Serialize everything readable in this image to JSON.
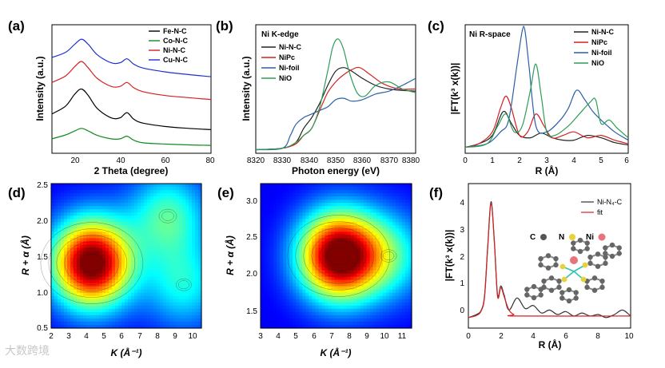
{
  "panels": [
    {
      "id": "a",
      "label": "(a)",
      "xlabel": "2 Theta (degree)",
      "ylabel": "Intensity (a.u.)",
      "xticks": [
        "20",
        "40",
        "60",
        "80"
      ],
      "legend": [
        {
          "name": "Fe-N-C",
          "color": "#000000"
        },
        {
          "name": "Co-N-C",
          "color": "#138a1f"
        },
        {
          "name": "Ni-N-C",
          "color": "#d42020"
        },
        {
          "name": "Cu-N-C",
          "color": "#1f2fd0"
        }
      ]
    },
    {
      "id": "b",
      "label": "(b)",
      "title": "Ni K-edge",
      "xlabel": "Photon energy (eV)",
      "ylabel": "Intensity (a.u.)",
      "xticks": [
        "8320",
        "8330",
        "8340",
        "8350",
        "8360",
        "8370",
        "8380"
      ],
      "legend": [
        {
          "name": "Ni-N-C",
          "color": "#222222"
        },
        {
          "name": "NiPc",
          "color": "#d42020"
        },
        {
          "name": "Ni-foil",
          "color": "#2a5fa8"
        },
        {
          "name": "NiO",
          "color": "#2e9c58"
        }
      ]
    },
    {
      "id": "c",
      "label": "(c)",
      "title": "Ni  R-space",
      "xlabel": "R (Å)",
      "ylabel": "|FT(k³ x(k))|",
      "xticks": [
        "0",
        "1",
        "2",
        "3",
        "4",
        "5",
        "6"
      ],
      "legend": [
        {
          "name": "Ni-N-C",
          "color": "#222222"
        },
        {
          "name": "NiPc",
          "color": "#d42020"
        },
        {
          "name": "Ni-foil",
          "color": "#2a5fa8"
        },
        {
          "name": "NiO",
          "color": "#2e9c58"
        }
      ]
    },
    {
      "id": "d",
      "label": "(d)",
      "xlabel": "K (Å⁻¹)",
      "ylabel": "R + α (Å)",
      "xticks": [
        "2",
        "3",
        "4",
        "5",
        "6",
        "7",
        "8",
        "9",
        "10"
      ],
      "yticks": [
        "0.5",
        "1.0",
        "1.5",
        "2.0",
        "2.5"
      ]
    },
    {
      "id": "e",
      "label": "(e)",
      "xlabel": "K (Å⁻¹)",
      "ylabel": "R + α (Å)",
      "xticks": [
        "3",
        "4",
        "5",
        "6",
        "7",
        "8",
        "9",
        "10",
        "11"
      ],
      "yticks": [
        "1.5",
        "2.0",
        "2.5",
        "3.0"
      ]
    },
    {
      "id": "f",
      "label": "(f)",
      "xlabel": "R (Å)",
      "ylabel": "|FT(k³ x(k))|",
      "xticks": [
        "0",
        "2",
        "4",
        "6",
        "8",
        "10"
      ],
      "yticks": [
        "0",
        "1",
        "2",
        "3",
        "4"
      ],
      "legend": [
        {
          "name": "Ni-N₄-C",
          "color": "#333333"
        },
        {
          "name": "fit",
          "color": "#d42020"
        }
      ],
      "inset_labels": {
        "c": "C",
        "n": "N",
        "ni": "Ni"
      }
    }
  ],
  "watermark": "大数跨境",
  "chart_data": [
    {
      "type": "line",
      "panel": "a",
      "xlabel": "2 Theta (degree)",
      "ylabel": "Intensity (a.u.)",
      "xlim": [
        10,
        80
      ],
      "series": [
        {
          "name": "Cu-N-C",
          "x": [
            10,
            16,
            20,
            23,
            26,
            30,
            36,
            40,
            43,
            46,
            50,
            60,
            70,
            80
          ],
          "y": [
            3.35,
            3.55,
            3.85,
            4.05,
            3.85,
            3.45,
            3.15,
            3.15,
            3.3,
            3.1,
            2.95,
            2.8,
            2.7,
            2.62
          ]
        },
        {
          "name": "Ni-N-C",
          "x": [
            10,
            16,
            20,
            23,
            26,
            30,
            36,
            40,
            43,
            46,
            50,
            60,
            70,
            80
          ],
          "y": [
            2.4,
            2.65,
            3.0,
            3.2,
            2.95,
            2.55,
            2.25,
            2.25,
            2.4,
            2.2,
            2.05,
            1.9,
            1.82,
            1.75
          ]
        },
        {
          "name": "Fe-N-C",
          "x": [
            10,
            16,
            20,
            23,
            26,
            30,
            36,
            40,
            43,
            46,
            50,
            60,
            70,
            80
          ],
          "y": [
            1.2,
            1.5,
            1.95,
            2.15,
            1.9,
            1.4,
            1.05,
            1.05,
            1.25,
            1.0,
            0.85,
            0.72,
            0.65,
            0.6
          ]
        },
        {
          "name": "Co-N-C",
          "x": [
            10,
            16,
            20,
            23,
            26,
            30,
            36,
            40,
            43,
            46,
            50,
            60,
            70,
            80
          ],
          "y": [
            0.25,
            0.4,
            0.55,
            0.65,
            0.55,
            0.38,
            0.25,
            0.25,
            0.35,
            0.2,
            0.1,
            0.05,
            0.02,
            0.0
          ]
        }
      ]
    },
    {
      "type": "line",
      "panel": "b",
      "xlabel": "Photon energy (eV)",
      "ylabel": "Intensity (a.u.)",
      "xlim": [
        8320,
        8380
      ],
      "series": [
        {
          "name": "Ni-N-C",
          "x": [
            8320,
            8330,
            8335,
            8338,
            8341,
            8344,
            8347,
            8350,
            8353,
            8356,
            8360,
            8365,
            8370,
            8375,
            8380
          ],
          "y": [
            0.0,
            0.02,
            0.1,
            0.3,
            0.45,
            0.65,
            0.9,
            1.1,
            1.15,
            1.1,
            1.0,
            0.9,
            0.85,
            0.83,
            0.82
          ]
        },
        {
          "name": "NiPc",
          "x": [
            8320,
            8330,
            8335,
            8338,
            8341,
            8344,
            8347,
            8350,
            8353,
            8356,
            8359,
            8363,
            8368,
            8374,
            8380
          ],
          "y": [
            0.0,
            0.02,
            0.08,
            0.2,
            0.3,
            0.55,
            0.8,
            0.95,
            1.05,
            1.12,
            1.15,
            1.05,
            0.92,
            0.85,
            0.85
          ]
        },
        {
          "name": "Ni-foil",
          "x": [
            8320,
            8330,
            8333,
            8335,
            8338,
            8341,
            8344,
            8347,
            8350,
            8353,
            8356,
            8360,
            8365,
            8370,
            8375,
            8380
          ],
          "y": [
            0.0,
            0.02,
            0.2,
            0.35,
            0.45,
            0.5,
            0.55,
            0.6,
            0.7,
            0.72,
            0.68,
            0.7,
            0.78,
            0.82,
            0.9,
            1.0
          ]
        },
        {
          "name": "NiO",
          "x": [
            8320,
            8330,
            8335,
            8338,
            8341,
            8344,
            8347,
            8349,
            8351,
            8353,
            8355,
            8358,
            8361,
            8365,
            8370,
            8375,
            8380
          ],
          "y": [
            0.0,
            0.02,
            0.1,
            0.2,
            0.3,
            0.6,
            1.1,
            1.45,
            1.55,
            1.4,
            1.1,
            0.8,
            0.75,
            0.9,
            0.95,
            0.85,
            0.8
          ]
        }
      ]
    },
    {
      "type": "line",
      "panel": "c",
      "xlabel": "R (Å)",
      "ylabel": "|FT(k³ x(k))|",
      "xlim": [
        0,
        6
      ],
      "series": [
        {
          "name": "Ni-N-C",
          "x": [
            0,
            0.5,
            1.0,
            1.4,
            1.7,
            2.0,
            2.4,
            2.8,
            3.2,
            3.6,
            4.0,
            4.5,
            5.0,
            5.5,
            6.0
          ],
          "y": [
            0.02,
            0.05,
            0.12,
            0.32,
            0.22,
            0.12,
            0.1,
            0.14,
            0.1,
            0.08,
            0.08,
            0.12,
            0.1,
            0.06,
            0.04
          ]
        },
        {
          "name": "NiPc",
          "x": [
            0,
            0.5,
            1.0,
            1.3,
            1.5,
            1.7,
            2.0,
            2.3,
            2.6,
            2.9,
            3.2,
            3.6,
            4.0,
            4.5,
            5.0,
            5.5,
            6.0
          ],
          "y": [
            0.02,
            0.05,
            0.15,
            0.35,
            0.45,
            0.35,
            0.12,
            0.15,
            0.3,
            0.2,
            0.1,
            0.12,
            0.15,
            0.1,
            0.12,
            0.08,
            0.05
          ]
        },
        {
          "name": "Ni-foil",
          "x": [
            0,
            0.8,
            1.3,
            1.6,
            1.9,
            2.1,
            2.2,
            2.35,
            2.6,
            3.0,
            3.5,
            3.8,
            4.1,
            4.4,
            4.7,
            5.0,
            5.5,
            6.0
          ],
          "y": [
            0.02,
            0.05,
            0.15,
            0.25,
            0.7,
            1.0,
            1.0,
            0.7,
            0.2,
            0.15,
            0.25,
            0.35,
            0.5,
            0.42,
            0.32,
            0.25,
            0.15,
            0.08
          ]
        },
        {
          "name": "NiO",
          "x": [
            0,
            0.8,
            1.2,
            1.5,
            1.8,
            2.1,
            2.4,
            2.6,
            2.8,
            3.0,
            3.3,
            3.8,
            4.2,
            4.6,
            4.8,
            5.0,
            5.3,
            5.6,
            6.0
          ],
          "y": [
            0.02,
            0.05,
            0.2,
            0.3,
            0.15,
            0.2,
            0.5,
            0.72,
            0.45,
            0.15,
            0.12,
            0.2,
            0.3,
            0.4,
            0.42,
            0.22,
            0.25,
            0.18,
            0.1
          ]
        }
      ]
    },
    {
      "type": "heatmap",
      "panel": "d",
      "xlabel": "K (Å⁻¹)",
      "ylabel": "R + α (Å)",
      "xlim": [
        2,
        10.5
      ],
      "ylim": [
        0.5,
        2.5
      ],
      "peaks": [
        {
          "x": 4.3,
          "y": 1.4,
          "amp": 1.0
        },
        {
          "x": 8.6,
          "y": 2.05,
          "amp": 0.35
        },
        {
          "x": 9.5,
          "y": 1.1,
          "amp": 0.28
        }
      ]
    },
    {
      "type": "heatmap",
      "panel": "e",
      "xlabel": "K (Å⁻¹)",
      "ylabel": "R + α (Å)",
      "xlim": [
        3,
        11.5
      ],
      "ylim": [
        1.3,
        3.2
      ],
      "peaks": [
        {
          "x": 7.4,
          "y": 2.25,
          "amp": 1.0
        },
        {
          "x": 10.2,
          "y": 2.25,
          "amp": 0.3
        }
      ]
    },
    {
      "type": "line",
      "panel": "f",
      "xlabel": "R (Å)",
      "ylabel": "|FT(k³ x(k))|",
      "xlim": [
        0,
        10
      ],
      "ylim": [
        -0.3,
        4.5
      ],
      "series": [
        {
          "name": "Ni-N₄-C",
          "x": [
            0,
            0.5,
            0.8,
            1.0,
            1.2,
            1.4,
            1.6,
            1.8,
            2.0,
            2.2,
            2.5,
            3.0,
            3.5,
            4.0,
            4.5,
            5.0,
            5.5,
            6.0,
            6.5,
            7.0,
            7.5,
            8.0,
            8.5,
            9.0,
            9.5,
            10.0
          ],
          "y": [
            0.05,
            0.15,
            0.3,
            0.8,
            2.5,
            3.9,
            2.6,
            0.8,
            1.1,
            0.8,
            0.3,
            0.7,
            0.35,
            0.45,
            0.2,
            0.3,
            0.15,
            0.25,
            0.1,
            0.2,
            0.1,
            0.15,
            0.05,
            0.15,
            0.3,
            0.1
          ]
        },
        {
          "name": "fit",
          "x": [
            0,
            0.5,
            0.8,
            1.0,
            1.2,
            1.4,
            1.6,
            1.8,
            2.0,
            2.2,
            2.5,
            2.8,
            3.0,
            10.0
          ],
          "y": [
            0.05,
            0.12,
            0.28,
            0.75,
            2.45,
            3.85,
            2.55,
            0.75,
            1.05,
            0.75,
            0.3,
            0.15,
            0.1,
            0.1
          ]
        }
      ]
    }
  ]
}
